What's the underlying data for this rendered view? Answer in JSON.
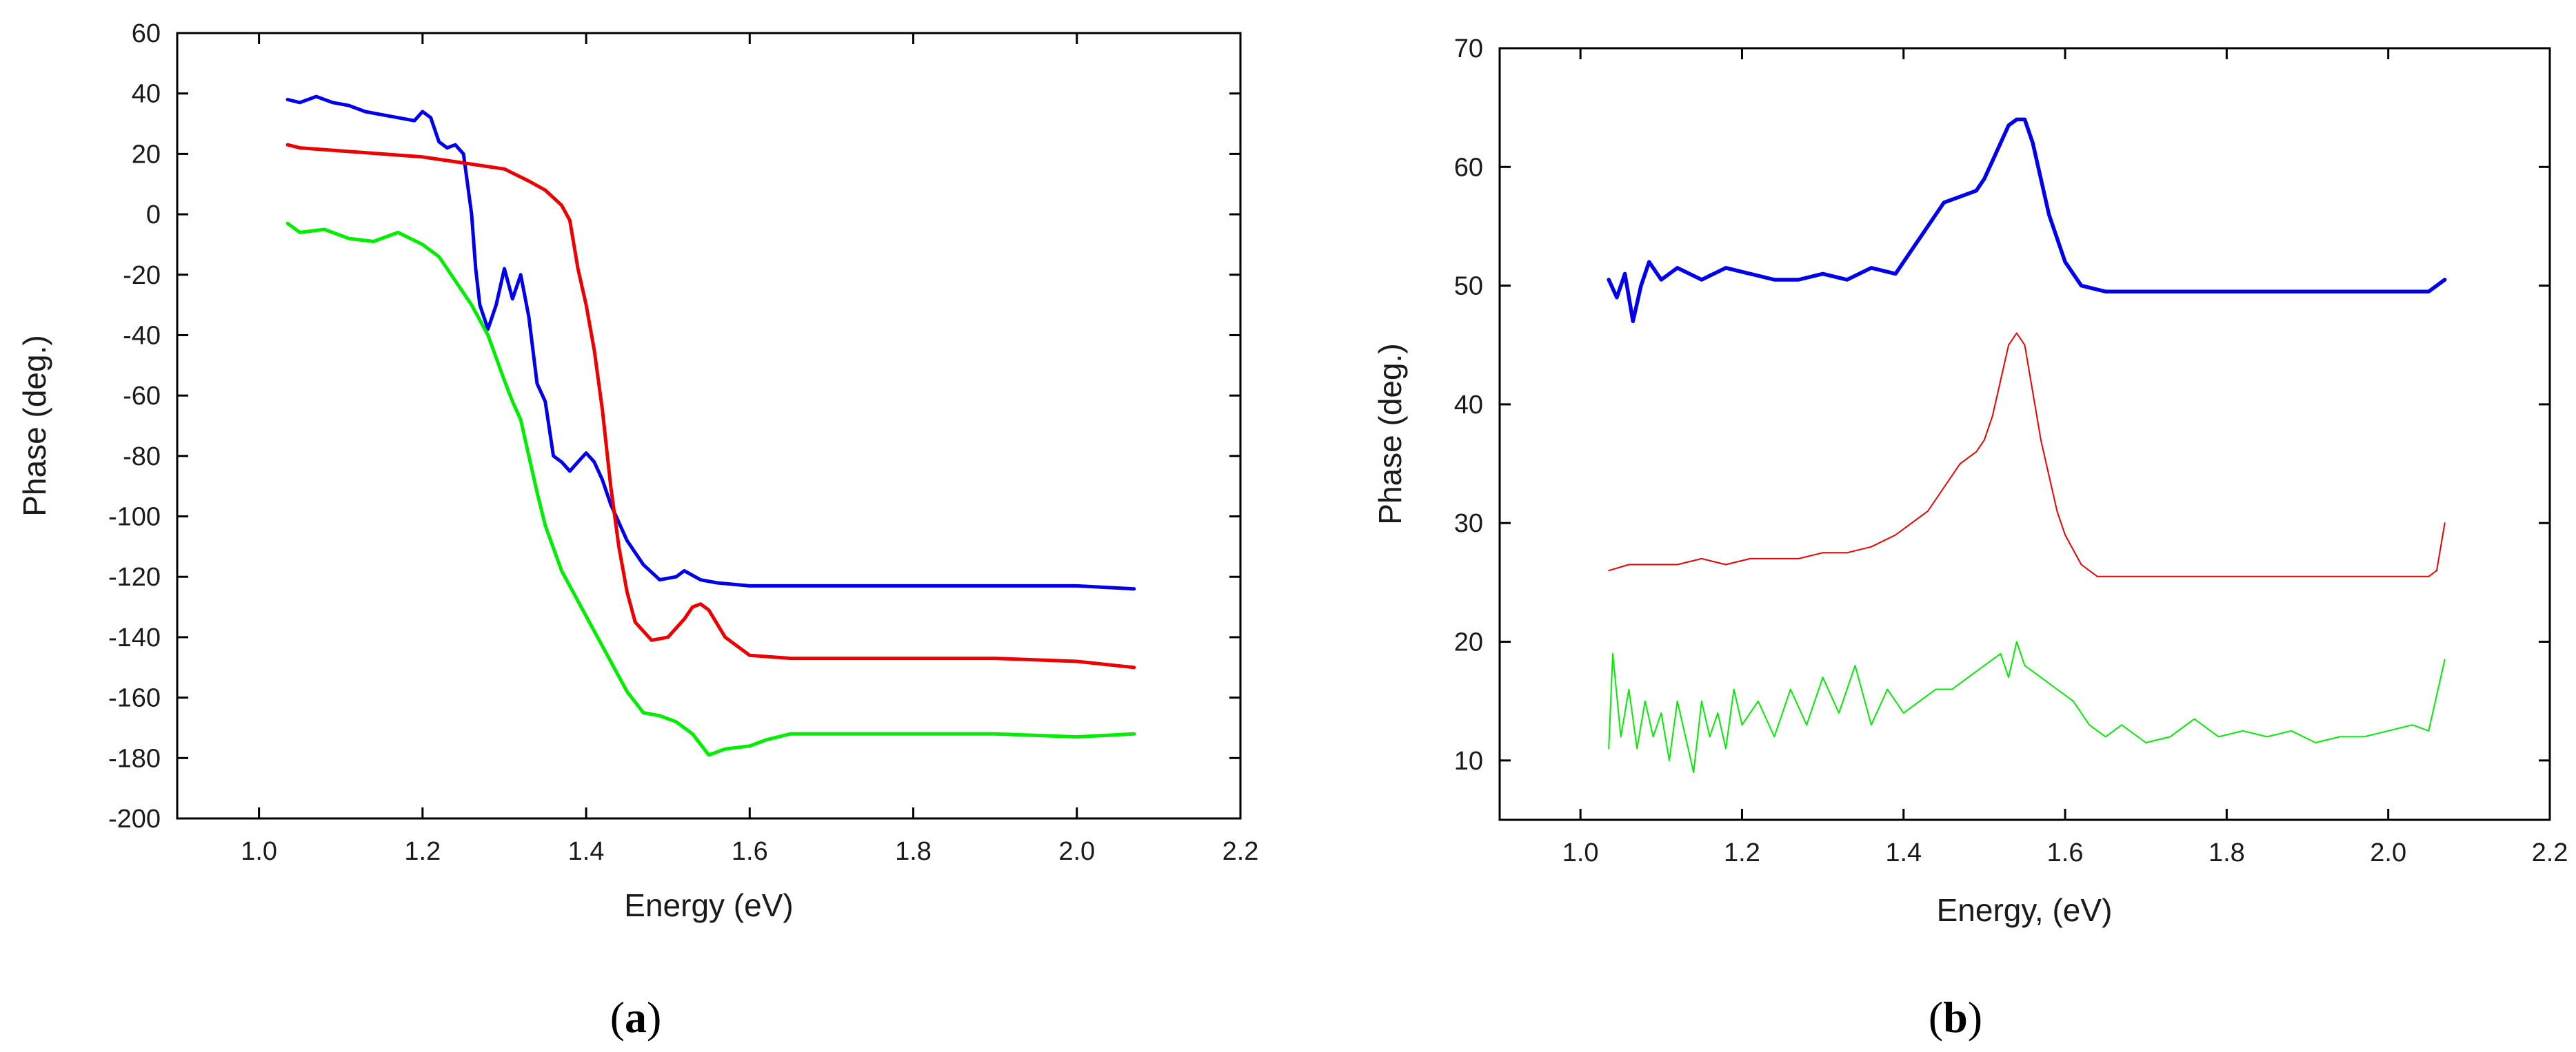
{
  "chart_data": [
    {
      "type": "line",
      "panel": "a",
      "caption": "(a)",
      "caption_letter": "a",
      "xlabel": "Energy (eV)",
      "ylabel": "Phase (deg.)",
      "xlim": [
        0.9,
        2.2
      ],
      "ylim": [
        -200,
        60
      ],
      "xticks": [
        1.0,
        1.2,
        1.4,
        1.6,
        1.8,
        2.0,
        2.2
      ],
      "xtick_labels": [
        "1.0",
        "1.2",
        "1.4",
        "1.6",
        "1.8",
        "2.0",
        "2.2"
      ],
      "yticks": [
        -200,
        -180,
        -160,
        -140,
        -120,
        -100,
        -80,
        -60,
        -40,
        -20,
        0,
        20,
        40,
        60
      ],
      "ytick_labels": [
        "-200",
        "-180",
        "-160",
        "-140",
        "-120",
        "-100",
        "-80",
        "-60",
        "-40",
        "-20",
        "0",
        "20",
        "40",
        "60"
      ],
      "series": [
        {
          "name": "blue",
          "color": "#0000ee",
          "x": [
            1.035,
            1.05,
            1.07,
            1.09,
            1.11,
            1.13,
            1.15,
            1.17,
            1.19,
            1.2,
            1.21,
            1.22,
            1.23,
            1.24,
            1.25,
            1.26,
            1.265,
            1.27,
            1.28,
            1.29,
            1.3,
            1.31,
            1.32,
            1.33,
            1.34,
            1.35,
            1.36,
            1.37,
            1.38,
            1.39,
            1.4,
            1.41,
            1.42,
            1.43,
            1.45,
            1.47,
            1.49,
            1.51,
            1.52,
            1.54,
            1.56,
            1.6,
            1.65,
            1.7,
            1.8,
            1.9,
            2.0,
            2.07
          ],
          "y": [
            38,
            37,
            39,
            37,
            36,
            34,
            33,
            32,
            31,
            34,
            32,
            24,
            22,
            23,
            20,
            0,
            -18,
            -30,
            -38,
            -30,
            -18,
            -28,
            -20,
            -34,
            -56,
            -62,
            -80,
            -82,
            -85,
            -82,
            -79,
            -82,
            -88,
            -96,
            -108,
            -116,
            -121,
            -120,
            -118,
            -121,
            -122,
            -123,
            -123,
            -123,
            -123,
            -123,
            -123,
            -124
          ]
        },
        {
          "name": "red",
          "color": "#ee0000",
          "x": [
            1.035,
            1.05,
            1.1,
            1.15,
            1.2,
            1.25,
            1.3,
            1.33,
            1.35,
            1.37,
            1.38,
            1.39,
            1.4,
            1.41,
            1.42,
            1.43,
            1.44,
            1.45,
            1.46,
            1.48,
            1.5,
            1.52,
            1.53,
            1.54,
            1.55,
            1.57,
            1.6,
            1.65,
            1.7,
            1.8,
            1.9,
            2.0,
            2.07
          ],
          "y": [
            23,
            22,
            21,
            20,
            19,
            17,
            15,
            11,
            8,
            3,
            -2,
            -18,
            -30,
            -45,
            -65,
            -90,
            -110,
            -125,
            -135,
            -141,
            -140,
            -134,
            -130,
            -129,
            -131,
            -140,
            -146,
            -147,
            -147,
            -147,
            -147,
            -148,
            -150
          ]
        },
        {
          "name": "green",
          "color": "#00ee00",
          "x": [
            1.035,
            1.05,
            1.08,
            1.11,
            1.14,
            1.17,
            1.2,
            1.22,
            1.24,
            1.26,
            1.28,
            1.3,
            1.31,
            1.32,
            1.33,
            1.34,
            1.35,
            1.37,
            1.39,
            1.41,
            1.43,
            1.45,
            1.47,
            1.49,
            1.51,
            1.53,
            1.55,
            1.57,
            1.6,
            1.62,
            1.65,
            1.7,
            1.8,
            1.9,
            2.0,
            2.07
          ],
          "y": [
            -3,
            -6,
            -5,
            -8,
            -9,
            -6,
            -10,
            -14,
            -22,
            -30,
            -40,
            -55,
            -62,
            -68,
            -80,
            -92,
            -103,
            -118,
            -128,
            -138,
            -148,
            -158,
            -165,
            -166,
            -168,
            -172,
            -179,
            -177,
            -176,
            -174,
            -172,
            -172,
            -172,
            -172,
            -173,
            -172
          ]
        }
      ]
    },
    {
      "type": "line",
      "panel": "b",
      "caption": "(b)",
      "caption_letter": "b",
      "xlabel": "Energy, (eV)",
      "ylabel": "Phase (deg.)",
      "xlim": [
        0.9,
        2.2
      ],
      "ylim": [
        5,
        70
      ],
      "xticks": [
        1.0,
        1.2,
        1.4,
        1.6,
        1.8,
        2.0,
        2.2
      ],
      "xtick_labels": [
        "1.0",
        "1.2",
        "1.4",
        "1.6",
        "1.8",
        "2.0",
        "2.2"
      ],
      "yticks": [
        10,
        20,
        30,
        40,
        50,
        60,
        70
      ],
      "ytick_labels": [
        "10",
        "20",
        "30",
        "40",
        "50",
        "60",
        "70"
      ],
      "series": [
        {
          "name": "blue",
          "color": "#0000ee",
          "x": [
            1.035,
            1.045,
            1.055,
            1.065,
            1.075,
            1.085,
            1.1,
            1.12,
            1.15,
            1.18,
            1.21,
            1.24,
            1.27,
            1.3,
            1.33,
            1.36,
            1.39,
            1.41,
            1.43,
            1.45,
            1.47,
            1.49,
            1.5,
            1.52,
            1.53,
            1.54,
            1.55,
            1.56,
            1.57,
            1.58,
            1.6,
            1.62,
            1.65,
            1.7,
            1.75,
            1.8,
            1.85,
            1.9,
            1.95,
            2.0,
            2.05,
            2.07
          ],
          "y": [
            50.5,
            49,
            51,
            47,
            50,
            52,
            50.5,
            51.5,
            50.5,
            51.5,
            51,
            50.5,
            50.5,
            51,
            50.5,
            51.5,
            51,
            53,
            55,
            57,
            57.5,
            58,
            59,
            62,
            63.5,
            64,
            64,
            62,
            59,
            56,
            52,
            50,
            49.5,
            49.5,
            49.5,
            49.5,
            49.5,
            49.5,
            49.5,
            49.5,
            49.5,
            50.5
          ]
        },
        {
          "name": "red",
          "color": "#ee0000",
          "x": [
            1.035,
            1.06,
            1.09,
            1.12,
            1.15,
            1.18,
            1.21,
            1.24,
            1.27,
            1.3,
            1.33,
            1.36,
            1.39,
            1.41,
            1.43,
            1.45,
            1.47,
            1.49,
            1.5,
            1.51,
            1.52,
            1.53,
            1.54,
            1.55,
            1.56,
            1.57,
            1.58,
            1.59,
            1.6,
            1.62,
            1.64,
            1.66,
            1.7,
            1.75,
            1.8,
            1.85,
            1.9,
            1.95,
            2.0,
            2.05,
            2.06,
            2.07
          ],
          "y": [
            26,
            26.5,
            26.5,
            26.5,
            27,
            26.5,
            27,
            27,
            27,
            27.5,
            27.5,
            28,
            29,
            30,
            31,
            33,
            35,
            36,
            37,
            39,
            42,
            45,
            46,
            45,
            41,
            37,
            34,
            31,
            29,
            26.5,
            25.5,
            25.5,
            25.5,
            25.5,
            25.5,
            25.5,
            25.5,
            25.5,
            25.5,
            25.5,
            26,
            30
          ]
        },
        {
          "name": "green",
          "color": "#00ee00",
          "x": [
            1.035,
            1.04,
            1.05,
            1.06,
            1.07,
            1.08,
            1.09,
            1.1,
            1.11,
            1.12,
            1.13,
            1.14,
            1.15,
            1.16,
            1.17,
            1.18,
            1.19,
            1.2,
            1.22,
            1.24,
            1.26,
            1.28,
            1.3,
            1.32,
            1.34,
            1.36,
            1.38,
            1.4,
            1.42,
            1.44,
            1.46,
            1.48,
            1.5,
            1.52,
            1.53,
            1.54,
            1.55,
            1.57,
            1.59,
            1.61,
            1.63,
            1.65,
            1.67,
            1.7,
            1.73,
            1.76,
            1.79,
            1.82,
            1.85,
            1.88,
            1.91,
            1.94,
            1.97,
            2.0,
            2.03,
            2.05,
            2.07
          ],
          "y": [
            11,
            19,
            12,
            16,
            11,
            15,
            12,
            14,
            10,
            15,
            12,
            9,
            15,
            12,
            14,
            11,
            16,
            13,
            15,
            12,
            16,
            13,
            17,
            14,
            18,
            13,
            16,
            14,
            15,
            16,
            16,
            17,
            18,
            19,
            17,
            20,
            18,
            17,
            16,
            15,
            13,
            12,
            13,
            11.5,
            12,
            13.5,
            12,
            12.5,
            12,
            12.5,
            11.5,
            12,
            12,
            12.5,
            13,
            12.5,
            18.5
          ]
        }
      ]
    }
  ]
}
